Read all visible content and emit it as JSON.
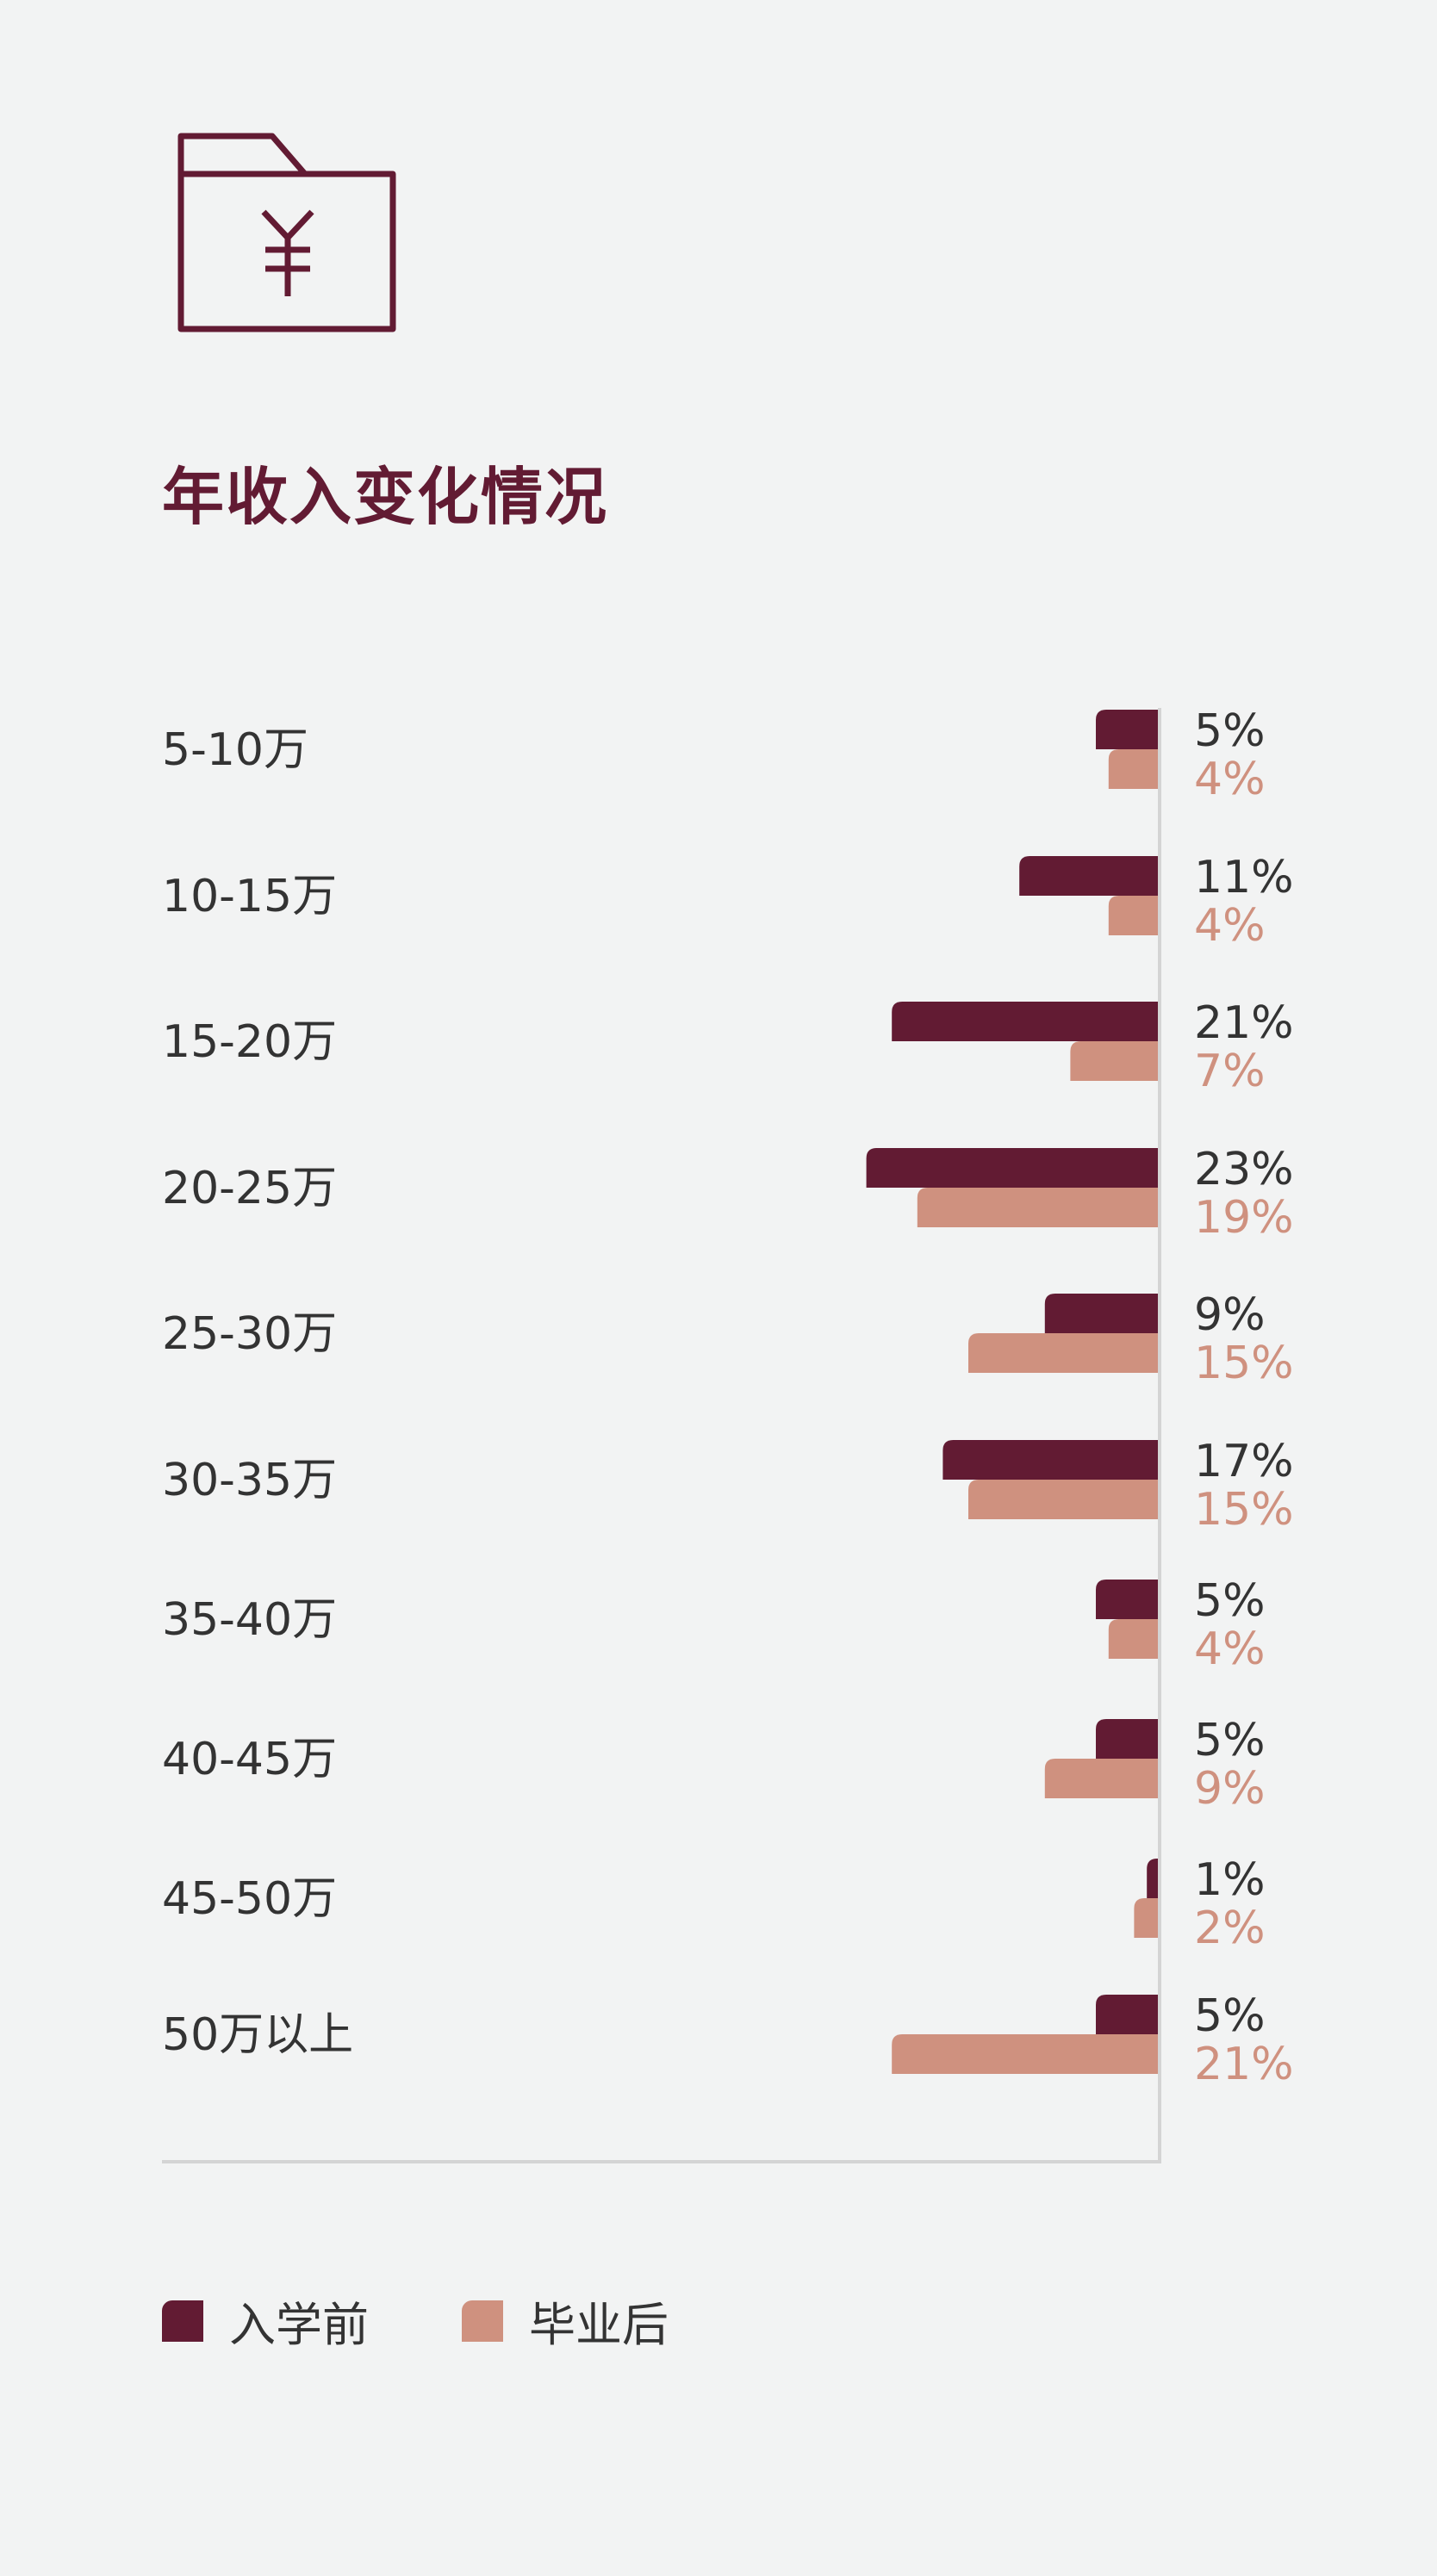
{
  "title": "年收入变化情况",
  "colors": {
    "before": "#621b33",
    "after": "#cf917f",
    "text": "#333333",
    "axis": "#d4d4d4"
  },
  "icon": "folder-yen-icon",
  "chart_data": {
    "type": "bar",
    "orientation": "horizontal",
    "title": "年收入变化情况",
    "categories": [
      "5-10万",
      "10-15万",
      "15-20万",
      "20-25万",
      "25-30万",
      "30-35万",
      "35-40万",
      "40-45万",
      "45-50万",
      "50万以上"
    ],
    "series": [
      {
        "name": "入学前",
        "values": [
          5,
          11,
          21,
          23,
          9,
          17,
          5,
          5,
          1,
          5
        ],
        "labels": [
          "5%",
          "11%",
          "21%",
          "23%",
          "9%",
          "17%",
          "5%",
          "5%",
          "1%",
          "5%"
        ]
      },
      {
        "name": "毕业后",
        "values": [
          4,
          4,
          7,
          19,
          15,
          15,
          4,
          9,
          2,
          21
        ],
        "labels": [
          "4%",
          "4%",
          "7%",
          "19%",
          "15%",
          "15%",
          "4%",
          "9%",
          "2%",
          "21%"
        ]
      }
    ],
    "value_unit": "%",
    "grid": false,
    "legend_position": "bottom-left"
  },
  "legend": [
    {
      "label": "入学前"
    },
    {
      "label": "毕业后"
    }
  ]
}
